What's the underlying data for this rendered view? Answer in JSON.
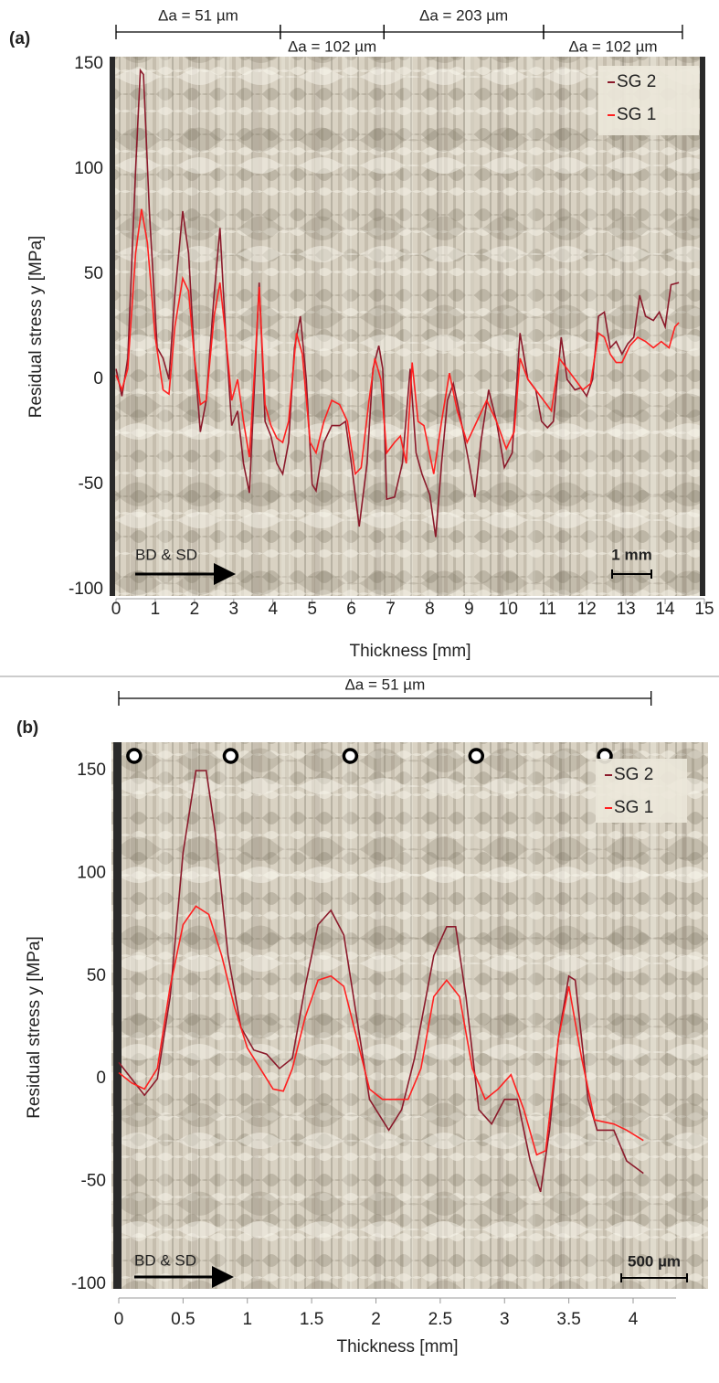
{
  "chart_data": [
    {
      "type": "line",
      "panel_label": "(a)",
      "xlabel": "Thickness [mm]",
      "ylabel": "Residual stress y [MPa]",
      "xlim": [
        0,
        15
      ],
      "xticks": [
        0,
        1,
        2,
        3,
        4,
        5,
        6,
        7,
        8,
        9,
        10,
        11,
        12,
        13,
        14,
        15
      ],
      "ylim": [
        -100,
        150
      ],
      "yticks": [
        -100,
        -50,
        0,
        50,
        100,
        150
      ],
      "legend": "upper right",
      "dimension_lines": [
        {
          "label": "Δa = 51 µm",
          "x": [
            0,
            4.19
          ]
        },
        {
          "label": "Δa = 102 µm",
          "x": [
            4.19,
            6.83
          ]
        },
        {
          "label": "Δa = 203 µm",
          "x": [
            6.83,
            10.9
          ]
        },
        {
          "label": "Δa = 102 µm",
          "x": [
            10.9,
            14.44
          ]
        }
      ],
      "direction_label": "BD & SD",
      "scale_bar_label": "1 mm",
      "series": [
        {
          "name": "SG 2",
          "color": "#8b1a2b",
          "x": [
            0,
            0.15,
            0.3,
            0.5,
            0.62,
            0.7,
            0.85,
            1.05,
            1.2,
            1.35,
            1.5,
            1.7,
            1.85,
            2.0,
            2.15,
            2.3,
            2.5,
            2.65,
            2.8,
            2.95,
            3.1,
            3.25,
            3.4,
            3.55,
            3.65,
            3.8,
            3.95,
            4.1,
            4.25,
            4.4,
            4.55,
            4.7,
            4.85,
            5.0,
            5.1,
            5.3,
            5.5,
            5.7,
            5.85,
            6.0,
            6.2,
            6.4,
            6.55,
            6.7,
            6.8,
            6.9,
            7.1,
            7.3,
            7.5,
            7.65,
            7.8,
            8.0,
            8.15,
            8.3,
            8.45,
            8.6,
            8.8,
            9.0,
            9.15,
            9.3,
            9.5,
            9.7,
            9.9,
            10.1,
            10.3,
            10.5,
            10.7,
            10.85,
            11.0,
            11.15,
            11.35,
            11.5,
            11.7,
            11.85,
            12.0,
            12.15,
            12.3,
            12.45,
            12.6,
            12.75,
            12.9,
            13.05,
            13.2,
            13.35,
            13.5,
            13.7,
            13.85,
            14.0,
            14.15,
            14.35
          ],
          "values": [
            5,
            -8,
            10,
            100,
            147,
            145,
            80,
            15,
            10,
            0,
            40,
            80,
            60,
            10,
            -25,
            -10,
            40,
            72,
            20,
            -22,
            -15,
            -40,
            -54,
            5,
            46,
            -20,
            -27,
            -40,
            -45,
            -30,
            15,
            30,
            0,
            -50,
            -53,
            -30,
            -22,
            -22,
            -20,
            -40,
            -70,
            -40,
            5,
            16,
            5,
            -57,
            -56,
            -40,
            5,
            -35,
            -45,
            -55,
            -75,
            -40,
            -10,
            -2,
            -20,
            -40,
            -56,
            -30,
            -5,
            -20,
            -42,
            -35,
            22,
            0,
            -5,
            -20,
            -23,
            -20,
            20,
            0,
            -5,
            -4,
            -8,
            0,
            30,
            32,
            15,
            18,
            12,
            17,
            20,
            40,
            30,
            28,
            32,
            25,
            45,
            46
          ]
        },
        {
          "name": "SG 1",
          "color": "#ff2020",
          "x": [
            0,
            0.15,
            0.3,
            0.5,
            0.65,
            0.8,
            1.0,
            1.2,
            1.35,
            1.5,
            1.7,
            1.85,
            2.0,
            2.15,
            2.3,
            2.5,
            2.65,
            2.8,
            2.95,
            3.1,
            3.25,
            3.4,
            3.55,
            3.65,
            3.8,
            3.95,
            4.1,
            4.25,
            4.4,
            4.6,
            4.75,
            4.95,
            5.1,
            5.3,
            5.5,
            5.7,
            5.9,
            6.1,
            6.25,
            6.45,
            6.6,
            6.75,
            6.9,
            7.1,
            7.25,
            7.4,
            7.55,
            7.7,
            7.85,
            8.1,
            8.3,
            8.5,
            8.7,
            8.95,
            9.2,
            9.45,
            9.7,
            9.95,
            10.15,
            10.3,
            10.5,
            10.7,
            10.9,
            11.1,
            11.3,
            11.5,
            11.7,
            11.9,
            12.1,
            12.3,
            12.45,
            12.6,
            12.75,
            12.9,
            13.1,
            13.3,
            13.5,
            13.7,
            13.9,
            14.1,
            14.25,
            14.35
          ],
          "values": [
            2,
            -5,
            5,
            60,
            81,
            65,
            20,
            -5,
            -7,
            25,
            48,
            42,
            10,
            -12,
            -10,
            30,
            46,
            20,
            -10,
            0,
            -20,
            -37,
            10,
            44,
            -12,
            -22,
            -28,
            -30,
            -20,
            22,
            12,
            -30,
            -35,
            -20,
            -10,
            -12,
            -20,
            -45,
            -42,
            -10,
            10,
            0,
            -35,
            -30,
            -27,
            -40,
            8,
            -20,
            -22,
            -45,
            -20,
            3,
            -15,
            -30,
            -20,
            -10,
            -20,
            -33,
            -25,
            10,
            0,
            -5,
            -10,
            -15,
            10,
            5,
            0,
            -5,
            -2,
            22,
            20,
            12,
            8,
            8,
            16,
            20,
            18,
            15,
            18,
            15,
            25,
            27
          ]
        }
      ]
    },
    {
      "type": "line",
      "panel_label": "(b)",
      "xlabel": "Thickness [mm]",
      "ylabel": "Residual stress y [MPa]",
      "xlim": [
        0,
        4.33
      ],
      "xticks": [
        0,
        0.5,
        1,
        1.5,
        2,
        2.5,
        3,
        3.5,
        4
      ],
      "ylim": [
        -100,
        150
      ],
      "yticks": [
        -100,
        -50,
        0,
        50,
        100,
        150
      ],
      "legend": "upper right",
      "dimension_lines": [
        {
          "label": "Δa = 51 µm",
          "x": [
            0,
            4.14
          ]
        }
      ],
      "circle_markers_x": [
        0.12,
        0.87,
        1.8,
        2.78,
        3.78
      ],
      "direction_label": "BD & SD",
      "scale_bar_label": "500 µm",
      "series": [
        {
          "name": "SG 2",
          "color": "#8b1a2b",
          "x": [
            0,
            0.1,
            0.2,
            0.3,
            0.4,
            0.5,
            0.6,
            0.68,
            0.75,
            0.85,
            0.95,
            1.05,
            1.15,
            1.25,
            1.35,
            1.45,
            1.55,
            1.65,
            1.75,
            1.85,
            1.95,
            2.05,
            2.1,
            2.2,
            2.3,
            2.45,
            2.55,
            2.62,
            2.7,
            2.8,
            2.9,
            3.0,
            3.1,
            3.2,
            3.28,
            3.35,
            3.42,
            3.5,
            3.55,
            3.65,
            3.72,
            3.85,
            3.95,
            4.08
          ],
          "values": [
            8,
            0,
            -8,
            0,
            40,
            110,
            150,
            150,
            120,
            60,
            25,
            14,
            12,
            5,
            10,
            45,
            75,
            82,
            70,
            30,
            -10,
            -20,
            -25,
            -15,
            10,
            60,
            74,
            74,
            40,
            -15,
            -22,
            -10,
            -10,
            -40,
            -55,
            -25,
            20,
            50,
            48,
            -10,
            -25,
            -25,
            -40,
            -46
          ]
        },
        {
          "name": "SG 1",
          "color": "#ff2020",
          "x": [
            0,
            0.1,
            0.2,
            0.3,
            0.4,
            0.5,
            0.6,
            0.7,
            0.8,
            0.9,
            1.0,
            1.1,
            1.2,
            1.28,
            1.35,
            1.45,
            1.55,
            1.65,
            1.75,
            1.85,
            1.95,
            2.05,
            2.15,
            2.25,
            2.35,
            2.45,
            2.55,
            2.65,
            2.75,
            2.85,
            2.95,
            3.05,
            3.15,
            3.25,
            3.32,
            3.42,
            3.5,
            3.6,
            3.7,
            3.85,
            3.95,
            4.08
          ],
          "values": [
            3,
            -2,
            -5,
            5,
            45,
            75,
            84,
            80,
            60,
            35,
            15,
            5,
            -5,
            -6,
            5,
            30,
            48,
            50,
            45,
            20,
            -5,
            -10,
            -10,
            -10,
            5,
            40,
            48,
            40,
            5,
            -10,
            -5,
            2,
            -15,
            -37,
            -35,
            20,
            45,
            10,
            -20,
            -22,
            -25,
            -30
          ]
        }
      ]
    }
  ]
}
